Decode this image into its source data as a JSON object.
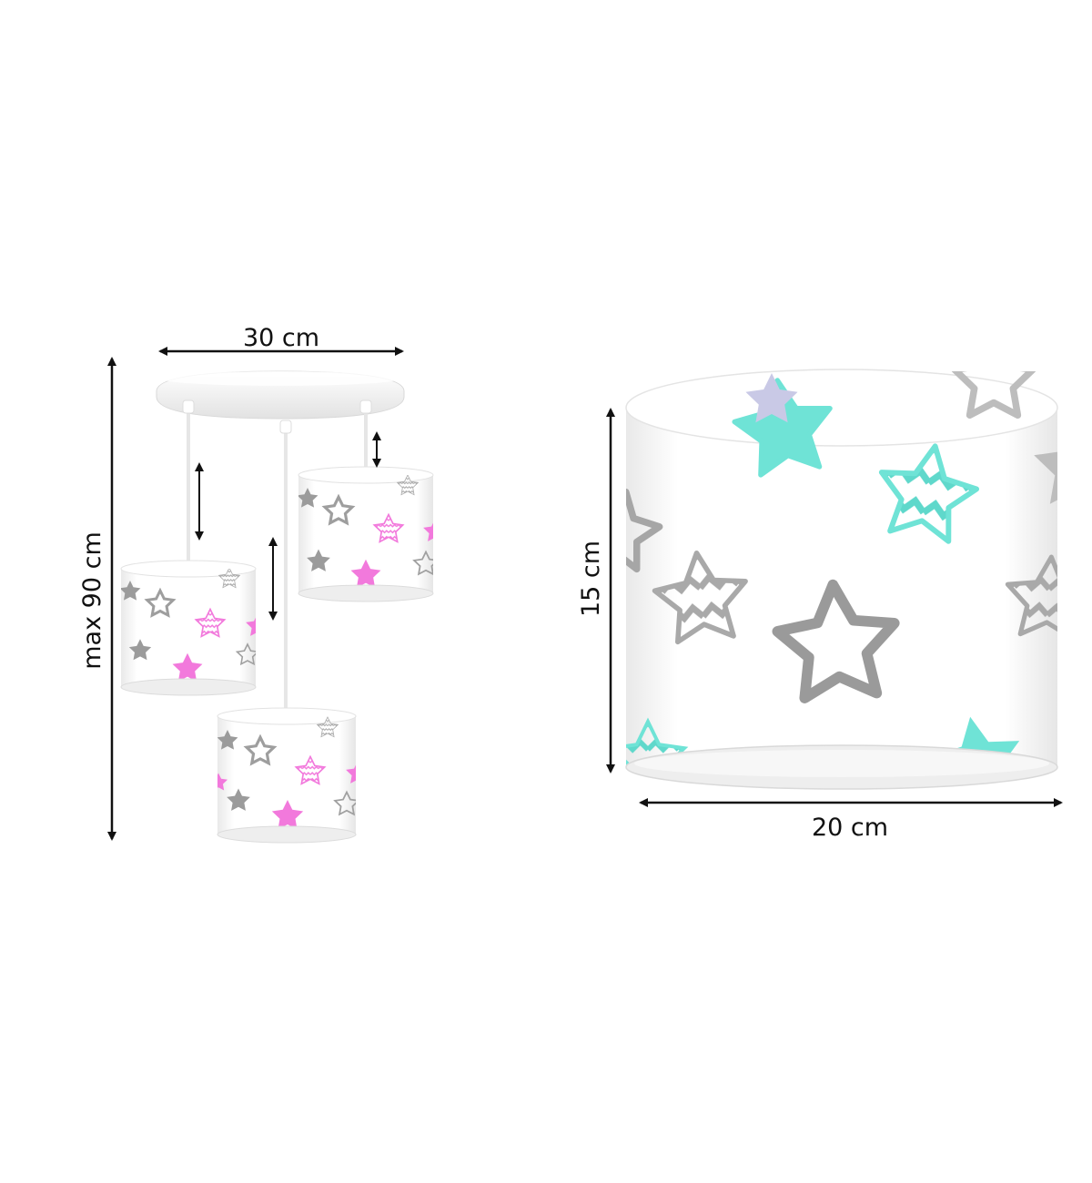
{
  "left_figure": {
    "width_label": "30 cm",
    "height_label": "max 90 cm",
    "shade_star_colors": [
      "#f279dc",
      "#9b9b9b",
      "#bdbdbd"
    ]
  },
  "right_figure": {
    "height_label": "15 cm",
    "width_label": "20 cm",
    "shade_star_colors": [
      "#6fe3d6",
      "#9b9b9b",
      "#bdbdbd"
    ]
  },
  "colors": {
    "arrow": "#111111",
    "shade": "#ffffff",
    "shade_inner": "#eeeeee",
    "canopy": "#f4f4f4"
  }
}
